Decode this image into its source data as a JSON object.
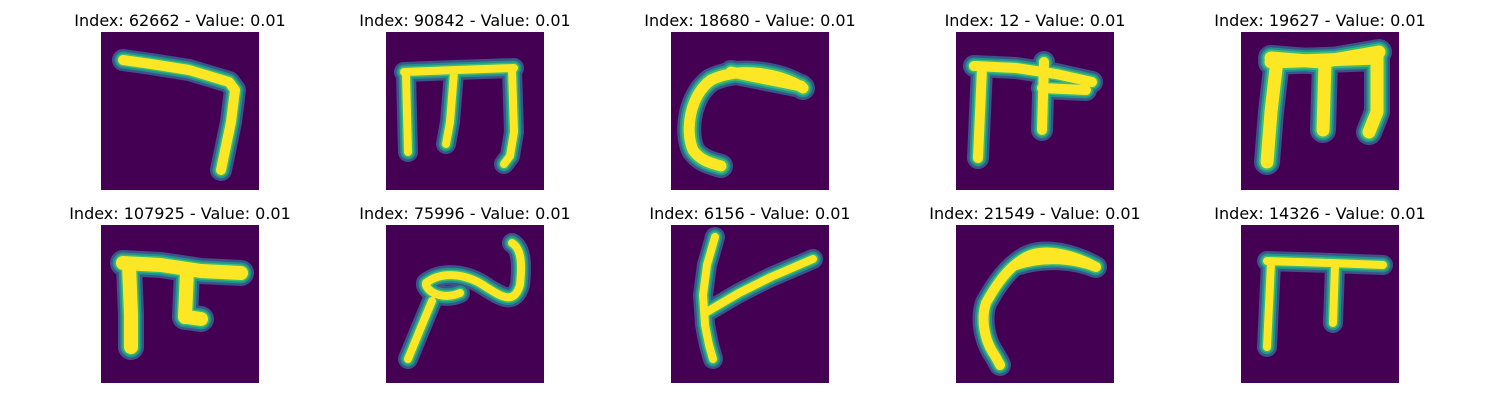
{
  "background_color": "#440154",
  "colors": {
    "stroke_core": "#fde725",
    "stroke_mid": "#3cbb75",
    "stroke_edge": "#21918c",
    "stroke_halo": "#3b528b"
  },
  "panels": [
    {
      "title": "Index: 62662 - Value: 0.01"
    },
    {
      "title": "Index: 90842 - Value: 0.01"
    },
    {
      "title": "Index: 18680 - Value: 0.01"
    },
    {
      "title": "Index: 12 - Value: 0.01"
    },
    {
      "title": "Index: 19627 - Value: 0.01"
    },
    {
      "title": "Index: 107925 - Value: 0.01"
    },
    {
      "title": "Index: 75996 - Value: 0.01"
    },
    {
      "title": "Index: 6156 - Value: 0.01"
    },
    {
      "title": "Index: 21549 - Value: 0.01"
    },
    {
      "title": "Index: 14326 - Value: 0.01"
    }
  ]
}
